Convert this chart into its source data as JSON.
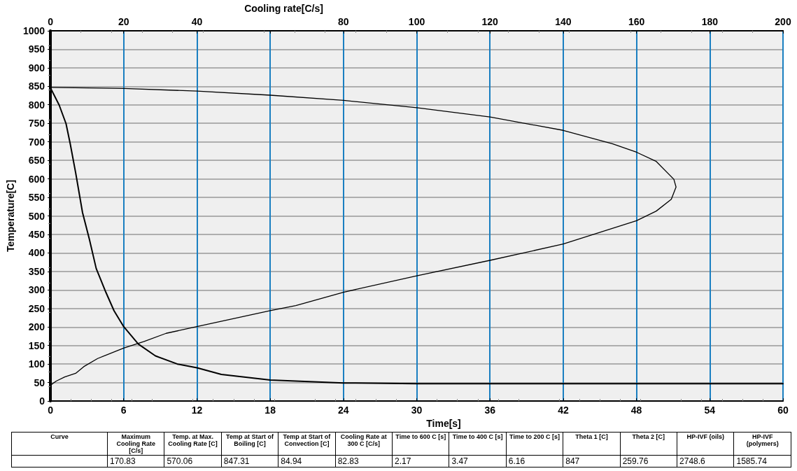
{
  "chart_data": {
    "type": "line",
    "xlabel": "Time[s]",
    "x2label": "Cooling rate[C/s]",
    "ylabel": "Temperature[C]",
    "xlim": [
      0,
      60
    ],
    "xticks": [
      0,
      6,
      12,
      18,
      24,
      30,
      36,
      42,
      48,
      54,
      60
    ],
    "x2lim": [
      0,
      200
    ],
    "x2ticks": [
      0,
      20,
      40,
      {
        "value": 60,
        "label": null
      },
      80,
      100,
      120,
      140,
      160,
      180,
      200
    ],
    "ylim": [
      0,
      1000
    ],
    "yticks": [
      0,
      50,
      100,
      150,
      200,
      250,
      300,
      350,
      400,
      450,
      500,
      550,
      600,
      650,
      700,
      750,
      800,
      850,
      900,
      950,
      1000
    ],
    "grid": true,
    "marker": "none",
    "line_style": "solid",
    "series": [
      {
        "color": "#000000",
        "x": [
          0,
          0.72,
          1.28,
          1.62,
          2.07,
          2.63,
          3.19,
          3.75,
          4.54,
          5.21,
          6,
          7.2,
          8.6,
          10.4,
          12,
          14,
          18,
          24,
          30,
          40,
          50,
          60
        ],
        "values": [
          846,
          799,
          749,
          695,
          616,
          509,
          437,
          358,
          294,
          244,
          201,
          154,
          122,
          100,
          90,
          72,
          57,
          49,
          47,
          47,
          47,
          47
        ]
      },
      {
        "color": "#000000",
        "axis": "x2",
        "x": [
          0,
          1.6,
          3.9,
          6.9,
          9.1,
          12.9,
          20,
          25.6,
          31.6,
          40,
          60,
          67,
          80,
          100,
          120,
          140,
          160,
          165.4,
          169.5,
          170.8,
          170.2,
          165.4,
          160,
          153.4,
          140,
          120,
          100,
          80,
          60,
          40,
          20,
          0
        ],
        "values": [
          43,
          54,
          65,
          75,
          93,
          115,
          143,
          161,
          183,
          201,
          244,
          258,
          294,
          338,
          380,
          424,
          487,
          513,
          545,
          578,
          599,
          647,
          672,
          695,
          731,
          767,
          792,
          812,
          826,
          837,
          844,
          847
        ]
      }
    ],
    "annotations": [
      "Curve",
      "Maximum Cooling Rate [C/s]",
      "Temp. at Max. Cooling Rate [C]",
      "Temp at Start of Boiling [C]",
      "Temp at Start of Convection [C]",
      "Cooling Rate at 300 C [C/s]",
      "Time to 600 C [s]",
      "Time to 400 C [s]",
      "Time to 200 C [s]",
      "Theta 1 [C]",
      "Theta 2 [C]",
      "HP-IVF (oils)",
      "HP-IVF (polymers)",
      "170.83",
      "570.06",
      "847.31",
      "84.94",
      "82.83",
      "2.17",
      "3.47",
      "6.16",
      "847",
      "259.76",
      "2748.6",
      "1585.74"
    ]
  }
}
